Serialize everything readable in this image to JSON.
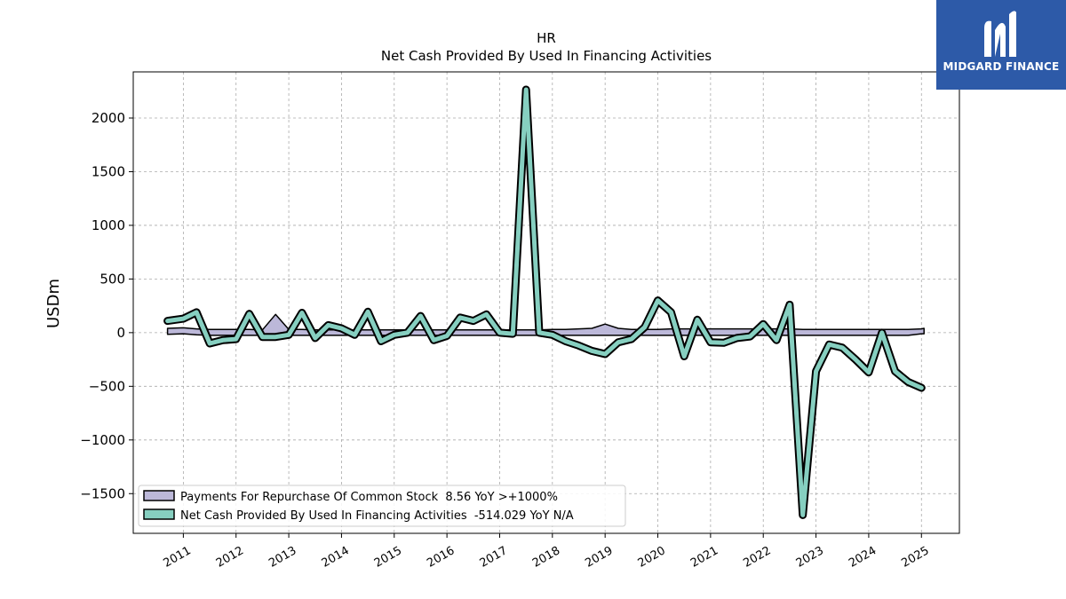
{
  "brand": {
    "name": "MIDGARD FINANCE",
    "bg_color": "#2d5aa8"
  },
  "chart_data": {
    "type": "line",
    "title": "HR",
    "subtitle": "Net Cash Provided By Used In Financing Activities",
    "ylabel": "USDm",
    "xlabel": "",
    "ylim": [
      -1870,
      2430
    ],
    "xlim": [
      2010.05,
      2025.72
    ],
    "yticks": [
      2000,
      1500,
      1000,
      500,
      0,
      -500,
      -1000,
      -1500
    ],
    "ytick_labels": [
      "2000",
      "1500",
      "1000",
      "500",
      "0",
      "−500",
      "−1000",
      "−1500"
    ],
    "xticks": [
      2011,
      2012,
      2013,
      2014,
      2015,
      2016,
      2017,
      2018,
      2019,
      2020,
      2021,
      2022,
      2023,
      2024,
      2025
    ],
    "xtick_labels": [
      "2011",
      "2012",
      "2013",
      "2014",
      "2015",
      "2016",
      "2017",
      "2018",
      "2019",
      "2020",
      "2021",
      "2022",
      "2023",
      "2024",
      "2025"
    ],
    "grid": true,
    "legend_position": "bottom-left",
    "series": [
      {
        "name": "Payments For Repurchase Of Common Stock  8.56 YoY >+1000%",
        "color": "#bcb8d9",
        "style": "band",
        "x": [
          2010.7,
          2011.0,
          2011.25,
          2011.5,
          2011.75,
          2012.0,
          2012.25,
          2012.5,
          2012.75,
          2013.0,
          2013.25,
          2013.5,
          2013.75,
          2014.0,
          2014.25,
          2014.5,
          2014.75,
          2015.0,
          2015.25,
          2015.5,
          2015.75,
          2016.0,
          2016.25,
          2016.5,
          2016.75,
          2017.0,
          2017.25,
          2017.5,
          2017.75,
          2018.0,
          2018.25,
          2018.5,
          2018.75,
          2019.0,
          2019.25,
          2019.5,
          2019.75,
          2020.0,
          2020.25,
          2020.5,
          2020.75,
          2021.0,
          2021.25,
          2021.5,
          2021.75,
          2022.0,
          2022.25,
          2022.5,
          2022.75,
          2023.0,
          2023.25,
          2023.5,
          2023.75,
          2024.0,
          2024.25,
          2024.5,
          2024.75,
          2025.0,
          2025.05
        ],
        "upper": [
          40,
          45,
          35,
          30,
          30,
          30,
          30,
          25,
          170,
          30,
          30,
          25,
          25,
          25,
          25,
          25,
          25,
          25,
          25,
          25,
          25,
          25,
          25,
          25,
          25,
          25,
          25,
          25,
          25,
          30,
          30,
          35,
          40,
          80,
          40,
          30,
          30,
          30,
          35,
          35,
          35,
          35,
          35,
          35,
          35,
          35,
          35,
          35,
          30,
          30,
          30,
          30,
          30,
          30,
          30,
          30,
          30,
          35,
          40
        ],
        "lower": [
          -15,
          -10,
          -20,
          -25,
          -25,
          -25,
          -25,
          -25,
          -25,
          -25,
          -25,
          -25,
          -25,
          -25,
          -25,
          -25,
          -25,
          -25,
          -25,
          -25,
          -25,
          -25,
          -25,
          -25,
          -25,
          -25,
          -25,
          -25,
          -25,
          -25,
          -25,
          -25,
          -25,
          -25,
          -25,
          -25,
          -25,
          -25,
          -25,
          -25,
          -25,
          -25,
          -25,
          -25,
          -25,
          -25,
          -25,
          -25,
          -25,
          -25,
          -25,
          -25,
          -25,
          -25,
          -25,
          -25,
          -25,
          -10,
          -10
        ]
      },
      {
        "name": "Net Cash Provided By Used In Financing Activities  -514.029 YoY N/A",
        "color": "#86cfc0",
        "style": "line",
        "x": [
          2010.7,
          2011.0,
          2011.25,
          2011.5,
          2011.75,
          2012.0,
          2012.25,
          2012.5,
          2012.75,
          2013.0,
          2013.25,
          2013.5,
          2013.75,
          2014.0,
          2014.25,
          2014.5,
          2014.75,
          2015.0,
          2015.25,
          2015.5,
          2015.75,
          2016.0,
          2016.25,
          2016.5,
          2016.75,
          2017.0,
          2017.25,
          2017.5,
          2017.75,
          2018.0,
          2018.25,
          2018.5,
          2018.75,
          2019.0,
          2019.25,
          2019.5,
          2019.75,
          2020.0,
          2020.25,
          2020.5,
          2020.75,
          2021.0,
          2021.25,
          2021.5,
          2021.75,
          2022.0,
          2022.25,
          2022.5,
          2022.75,
          2023.0,
          2023.25,
          2023.5,
          2023.75,
          2024.0,
          2024.25,
          2024.5,
          2024.75,
          2025.0
        ],
        "y": [
          110,
          130,
          190,
          -100,
          -70,
          -60,
          175,
          -40,
          -40,
          -20,
          185,
          -50,
          70,
          40,
          -20,
          195,
          -80,
          -20,
          0,
          155,
          -70,
          -30,
          140,
          110,
          170,
          0,
          -10,
          2265,
          0,
          -20,
          -80,
          -120,
          -170,
          -200,
          -90,
          -60,
          50,
          300,
          190,
          -220,
          120,
          -90,
          -95,
          -50,
          -35,
          80,
          -70,
          260,
          -1700,
          -360,
          -110,
          -140,
          -250,
          -370,
          0,
          -360,
          -460,
          -514
        ]
      }
    ]
  }
}
